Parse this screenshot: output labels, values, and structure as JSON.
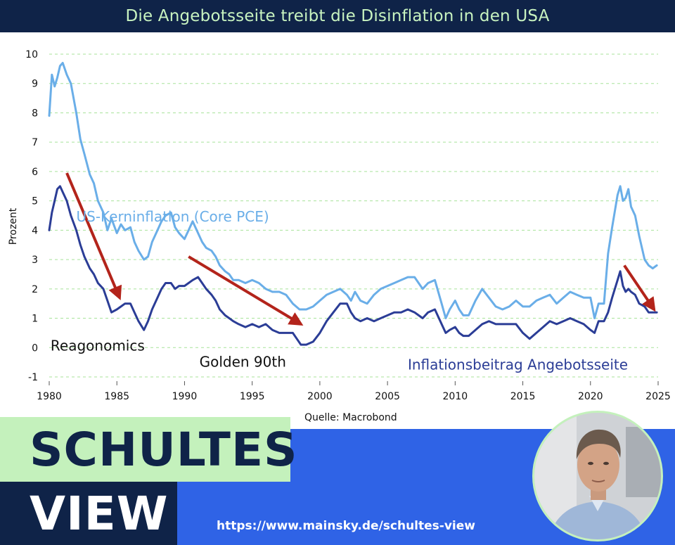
{
  "title": "Die Angebotsseite treibt die Disinflation in den USA",
  "source": "Quelle: Macrobond",
  "brand": {
    "line1": "SCHULTES",
    "line2": "VIEW",
    "url": "https://www.mainsky.de/schultes-view"
  },
  "colors": {
    "core_pce": "#6aaee8",
    "supply": "#2b3d96",
    "arrow": "#b3241b",
    "grid": "#a8e39a",
    "title_bg": "#0f2348",
    "title_fg": "#c8f3c0",
    "banner_blue": "#2f63e6",
    "banner_green": "#c4f1bc"
  },
  "chart_data": {
    "type": "line",
    "ylabel": "Prozent",
    "xlim": [
      1980,
      2025
    ],
    "ylim": [
      -1,
      10
    ],
    "x_ticks": [
      "1980",
      "1985",
      "1990",
      "1995",
      "2000",
      "2005",
      "2010",
      "2015",
      "2020",
      "2025"
    ],
    "y_ticks": [
      "10",
      "9",
      "8",
      "7",
      "6",
      "5",
      "4",
      "3",
      "2",
      "1",
      "0",
      "-1"
    ],
    "grid": "horizontal dashed",
    "series": [
      {
        "name": "US-Kerninflation (Core PCE)",
        "points": [
          [
            1980.0,
            7.9
          ],
          [
            1980.2,
            9.3
          ],
          [
            1980.4,
            8.9
          ],
          [
            1980.6,
            9.2
          ],
          [
            1980.8,
            9.6
          ],
          [
            1981.0,
            9.7
          ],
          [
            1981.3,
            9.3
          ],
          [
            1981.6,
            9.0
          ],
          [
            1982.0,
            8.0
          ],
          [
            1982.3,
            7.1
          ],
          [
            1982.6,
            6.6
          ],
          [
            1983.0,
            5.9
          ],
          [
            1983.3,
            5.6
          ],
          [
            1983.6,
            5.0
          ],
          [
            1984.0,
            4.6
          ],
          [
            1984.3,
            4.0
          ],
          [
            1984.6,
            4.4
          ],
          [
            1985.0,
            3.9
          ],
          [
            1985.3,
            4.2
          ],
          [
            1985.6,
            4.0
          ],
          [
            1986.0,
            4.1
          ],
          [
            1986.3,
            3.6
          ],
          [
            1986.6,
            3.3
          ],
          [
            1987.0,
            3.0
          ],
          [
            1987.3,
            3.1
          ],
          [
            1987.6,
            3.6
          ],
          [
            1988.0,
            4.0
          ],
          [
            1988.3,
            4.3
          ],
          [
            1988.6,
            4.5
          ],
          [
            1989.0,
            4.6
          ],
          [
            1989.3,
            4.1
          ],
          [
            1989.6,
            3.9
          ],
          [
            1990.0,
            3.7
          ],
          [
            1990.3,
            4.0
          ],
          [
            1990.6,
            4.3
          ],
          [
            1991.0,
            3.9
          ],
          [
            1991.3,
            3.6
          ],
          [
            1991.6,
            3.4
          ],
          [
            1992.0,
            3.3
          ],
          [
            1992.3,
            3.1
          ],
          [
            1992.6,
            2.8
          ],
          [
            1993.0,
            2.6
          ],
          [
            1993.3,
            2.5
          ],
          [
            1993.6,
            2.3
          ],
          [
            1994.0,
            2.3
          ],
          [
            1994.5,
            2.2
          ],
          [
            1995.0,
            2.3
          ],
          [
            1995.5,
            2.2
          ],
          [
            1996.0,
            2.0
          ],
          [
            1996.5,
            1.9
          ],
          [
            1997.0,
            1.9
          ],
          [
            1997.5,
            1.8
          ],
          [
            1998.0,
            1.5
          ],
          [
            1998.5,
            1.3
          ],
          [
            1999.0,
            1.3
          ],
          [
            1999.5,
            1.4
          ],
          [
            2000.0,
            1.6
          ],
          [
            2000.5,
            1.8
          ],
          [
            2001.0,
            1.9
          ],
          [
            2001.5,
            2.0
          ],
          [
            2002.0,
            1.8
          ],
          [
            2002.3,
            1.6
          ],
          [
            2002.6,
            1.9
          ],
          [
            2003.0,
            1.6
          ],
          [
            2003.5,
            1.5
          ],
          [
            2004.0,
            1.8
          ],
          [
            2004.5,
            2.0
          ],
          [
            2005.0,
            2.1
          ],
          [
            2005.5,
            2.2
          ],
          [
            2006.0,
            2.3
          ],
          [
            2006.5,
            2.4
          ],
          [
            2007.0,
            2.4
          ],
          [
            2007.3,
            2.2
          ],
          [
            2007.6,
            2.0
          ],
          [
            2008.0,
            2.2
          ],
          [
            2008.5,
            2.3
          ],
          [
            2009.0,
            1.5
          ],
          [
            2009.3,
            1.0
          ],
          [
            2009.6,
            1.3
          ],
          [
            2010.0,
            1.6
          ],
          [
            2010.3,
            1.3
          ],
          [
            2010.6,
            1.1
          ],
          [
            2011.0,
            1.1
          ],
          [
            2011.5,
            1.6
          ],
          [
            2012.0,
            2.0
          ],
          [
            2012.5,
            1.7
          ],
          [
            2013.0,
            1.4
          ],
          [
            2013.5,
            1.3
          ],
          [
            2014.0,
            1.4
          ],
          [
            2014.5,
            1.6
          ],
          [
            2015.0,
            1.4
          ],
          [
            2015.5,
            1.4
          ],
          [
            2016.0,
            1.6
          ],
          [
            2016.5,
            1.7
          ],
          [
            2017.0,
            1.8
          ],
          [
            2017.5,
            1.5
          ],
          [
            2018.0,
            1.7
          ],
          [
            2018.5,
            1.9
          ],
          [
            2019.0,
            1.8
          ],
          [
            2019.5,
            1.7
          ],
          [
            2020.0,
            1.7
          ],
          [
            2020.3,
            1.0
          ],
          [
            2020.6,
            1.5
          ],
          [
            2021.0,
            1.5
          ],
          [
            2021.3,
            3.2
          ],
          [
            2021.6,
            4.1
          ],
          [
            2022.0,
            5.2
          ],
          [
            2022.2,
            5.5
          ],
          [
            2022.4,
            5.0
          ],
          [
            2022.6,
            5.1
          ],
          [
            2022.8,
            5.4
          ],
          [
            2023.0,
            4.8
          ],
          [
            2023.3,
            4.5
          ],
          [
            2023.6,
            3.8
          ],
          [
            2024.0,
            3.0
          ],
          [
            2024.3,
            2.8
          ],
          [
            2024.6,
            2.7
          ],
          [
            2024.9,
            2.8
          ]
        ]
      },
      {
        "name": "Inflationsbeitrag Angebotsseite",
        "points": [
          [
            1980.0,
            4.0
          ],
          [
            1980.2,
            4.6
          ],
          [
            1980.4,
            5.0
          ],
          [
            1980.6,
            5.4
          ],
          [
            1980.8,
            5.5
          ],
          [
            1981.0,
            5.3
          ],
          [
            1981.3,
            5.0
          ],
          [
            1981.6,
            4.5
          ],
          [
            1982.0,
            4.0
          ],
          [
            1982.3,
            3.5
          ],
          [
            1982.6,
            3.1
          ],
          [
            1983.0,
            2.7
          ],
          [
            1983.3,
            2.5
          ],
          [
            1983.6,
            2.2
          ],
          [
            1984.0,
            2.0
          ],
          [
            1984.3,
            1.6
          ],
          [
            1984.6,
            1.2
          ],
          [
            1985.0,
            1.3
          ],
          [
            1985.3,
            1.4
          ],
          [
            1985.6,
            1.5
          ],
          [
            1986.0,
            1.5
          ],
          [
            1986.3,
            1.2
          ],
          [
            1986.6,
            0.9
          ],
          [
            1987.0,
            0.6
          ],
          [
            1987.3,
            0.9
          ],
          [
            1987.6,
            1.3
          ],
          [
            1988.0,
            1.7
          ],
          [
            1988.3,
            2.0
          ],
          [
            1988.6,
            2.2
          ],
          [
            1989.0,
            2.2
          ],
          [
            1989.3,
            2.0
          ],
          [
            1989.6,
            2.1
          ],
          [
            1990.0,
            2.1
          ],
          [
            1990.3,
            2.2
          ],
          [
            1990.6,
            2.3
          ],
          [
            1991.0,
            2.4
          ],
          [
            1991.3,
            2.2
          ],
          [
            1991.6,
            2.0
          ],
          [
            1992.0,
            1.8
          ],
          [
            1992.3,
            1.6
          ],
          [
            1992.6,
            1.3
          ],
          [
            1993.0,
            1.1
          ],
          [
            1993.3,
            1.0
          ],
          [
            1993.6,
            0.9
          ],
          [
            1994.0,
            0.8
          ],
          [
            1994.5,
            0.7
          ],
          [
            1995.0,
            0.8
          ],
          [
            1995.5,
            0.7
          ],
          [
            1996.0,
            0.8
          ],
          [
            1996.5,
            0.6
          ],
          [
            1997.0,
            0.5
          ],
          [
            1997.5,
            0.5
          ],
          [
            1998.0,
            0.5
          ],
          [
            1998.3,
            0.3
          ],
          [
            1998.6,
            0.1
          ],
          [
            1999.0,
            0.1
          ],
          [
            1999.5,
            0.2
          ],
          [
            2000.0,
            0.5
          ],
          [
            2000.5,
            0.9
          ],
          [
            2001.0,
            1.2
          ],
          [
            2001.5,
            1.5
          ],
          [
            2002.0,
            1.5
          ],
          [
            2002.3,
            1.2
          ],
          [
            2002.6,
            1.0
          ],
          [
            2003.0,
            0.9
          ],
          [
            2003.5,
            1.0
          ],
          [
            2004.0,
            0.9
          ],
          [
            2004.5,
            1.0
          ],
          [
            2005.0,
            1.1
          ],
          [
            2005.5,
            1.2
          ],
          [
            2006.0,
            1.2
          ],
          [
            2006.5,
            1.3
          ],
          [
            2007.0,
            1.2
          ],
          [
            2007.3,
            1.1
          ],
          [
            2007.6,
            1.0
          ],
          [
            2008.0,
            1.2
          ],
          [
            2008.5,
            1.3
          ],
          [
            2009.0,
            0.8
          ],
          [
            2009.3,
            0.5
          ],
          [
            2009.6,
            0.6
          ],
          [
            2010.0,
            0.7
          ],
          [
            2010.3,
            0.5
          ],
          [
            2010.6,
            0.4
          ],
          [
            2011.0,
            0.4
          ],
          [
            2011.5,
            0.6
          ],
          [
            2012.0,
            0.8
          ],
          [
            2012.5,
            0.9
          ],
          [
            2013.0,
            0.8
          ],
          [
            2013.5,
            0.8
          ],
          [
            2014.0,
            0.8
          ],
          [
            2014.5,
            0.8
          ],
          [
            2015.0,
            0.5
          ],
          [
            2015.5,
            0.3
          ],
          [
            2016.0,
            0.5
          ],
          [
            2016.5,
            0.7
          ],
          [
            2017.0,
            0.9
          ],
          [
            2017.5,
            0.8
          ],
          [
            2018.0,
            0.9
          ],
          [
            2018.5,
            1.0
          ],
          [
            2019.0,
            0.9
          ],
          [
            2019.5,
            0.8
          ],
          [
            2020.0,
            0.6
          ],
          [
            2020.3,
            0.5
          ],
          [
            2020.6,
            0.9
          ],
          [
            2021.0,
            0.9
          ],
          [
            2021.3,
            1.2
          ],
          [
            2021.6,
            1.7
          ],
          [
            2022.0,
            2.3
          ],
          [
            2022.2,
            2.6
          ],
          [
            2022.4,
            2.1
          ],
          [
            2022.6,
            1.9
          ],
          [
            2022.8,
            2.0
          ],
          [
            2023.0,
            1.9
          ],
          [
            2023.3,
            1.8
          ],
          [
            2023.6,
            1.5
          ],
          [
            2024.0,
            1.4
          ],
          [
            2024.3,
            1.2
          ],
          [
            2024.6,
            1.2
          ],
          [
            2024.9,
            1.2
          ]
        ]
      }
    ],
    "annotations": [
      {
        "text": "US-Kerninflation (Core PCE)",
        "x": 1982.0,
        "y": 4.3
      },
      {
        "text": "Reagonomics",
        "x": 1980.1,
        "y": -0.1
      },
      {
        "text": "Golden 90th",
        "x": 1991.1,
        "y": -0.65
      },
      {
        "text": "Inflationsbeitrag Angebotsseite",
        "x": 2006.5,
        "y": -0.75
      }
    ],
    "arrows": [
      {
        "from": [
          1981.3,
          5.95
        ],
        "to": [
          1985.2,
          1.7
        ]
      },
      {
        "from": [
          1990.3,
          3.1
        ],
        "to": [
          1998.6,
          0.8
        ]
      },
      {
        "from": [
          2022.5,
          2.8
        ],
        "to": [
          2024.7,
          1.3
        ]
      }
    ]
  }
}
